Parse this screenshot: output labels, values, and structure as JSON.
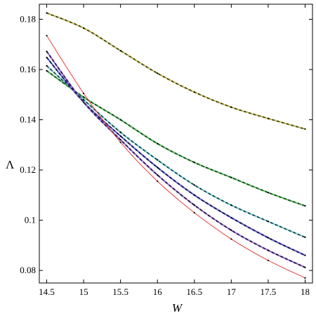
{
  "chart_data": {
    "type": "line",
    "xlabel": "W",
    "ylabel": "Λ",
    "xlim": [
      14.4,
      18.1
    ],
    "ylim": [
      0.075,
      0.186
    ],
    "grid": false,
    "legend": "none",
    "x_ticks": [
      {
        "value": 14.5,
        "label": "14.5"
      },
      {
        "value": 15,
        "label": "15"
      },
      {
        "value": 15.5,
        "label": "15.5"
      },
      {
        "value": 16,
        "label": "16"
      },
      {
        "value": 16.5,
        "label": "16.5"
      },
      {
        "value": 17,
        "label": "17"
      },
      {
        "value": 17.5,
        "label": "17.5"
      },
      {
        "value": 18,
        "label": "18"
      }
    ],
    "y_ticks": [
      {
        "value": 0.08,
        "label": "0.08"
      },
      {
        "value": 0.1,
        "label": "0.1"
      },
      {
        "value": 0.12,
        "label": "0.12"
      },
      {
        "value": 0.14,
        "label": "0.14"
      },
      {
        "value": 0.16,
        "label": "0.16"
      },
      {
        "value": 0.18,
        "label": "0.18"
      }
    ],
    "series": [
      {
        "style": "dashed",
        "colors": [
          "#556b2f",
          "#d4c05a"
        ],
        "x": [
          14.5,
          15,
          15.5,
          16,
          16.5,
          17,
          17.5,
          18
        ],
        "y": [
          0.1825,
          0.1765,
          0.1675,
          0.1585,
          0.151,
          0.145,
          0.1405,
          0.1363
        ]
      },
      {
        "style": "dashed",
        "colors": [
          "#1f6b2f",
          "#5fbf5f"
        ],
        "x": [
          14.5,
          15,
          15.5,
          16,
          16.5,
          17,
          17.5,
          18
        ],
        "y": [
          0.1595,
          0.149,
          0.14,
          0.1305,
          0.123,
          0.117,
          0.111,
          0.1057
        ]
      },
      {
        "style": "dashed",
        "colors": [
          "#1f5f6b",
          "#7fd0d0"
        ],
        "x": [
          14.5,
          15,
          15.5,
          16,
          16.5,
          17,
          17.5,
          18
        ],
        "y": [
          0.1615,
          0.148,
          0.135,
          0.124,
          0.114,
          0.106,
          0.0995,
          0.0932
        ]
      },
      {
        "style": "dashed",
        "colors": [
          "#1a1a6b",
          "#6a6ad8"
        ],
        "x": [
          14.5,
          15,
          15.5,
          16,
          16.5,
          17,
          17.5,
          18
        ],
        "y": [
          0.1648,
          0.147,
          0.1335,
          0.121,
          0.11,
          0.101,
          0.093,
          0.086
        ]
      },
      {
        "style": "dashed",
        "colors": [
          "#3a1a6b",
          "#9a7ad8"
        ],
        "x": [
          14.5,
          15,
          15.5,
          16,
          16.5,
          17,
          17.5,
          18
        ],
        "y": [
          0.1672,
          0.147,
          0.132,
          0.118,
          0.106,
          0.096,
          0.088,
          0.0812
        ]
      },
      {
        "style": "solid",
        "colors": [
          "#e23b3b",
          "#e23b3b"
        ],
        "x": [
          14.5,
          15,
          15.5,
          16,
          16.5,
          17,
          17.5,
          18
        ],
        "y": [
          0.1735,
          0.1505,
          0.131,
          0.1155,
          0.103,
          0.0925,
          0.084,
          0.077
        ]
      }
    ]
  }
}
